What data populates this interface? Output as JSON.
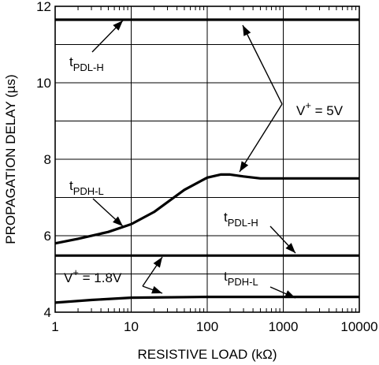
{
  "chart_data": {
    "type": "line",
    "xlabel": "RESISTIVE LOAD (kΩ)",
    "ylabel": "PROPAGATION DELAY (µs)",
    "x_scale": "log",
    "xlim": [
      1,
      10000
    ],
    "ylim": [
      4,
      12
    ],
    "x_ticks": [
      1,
      10,
      100,
      1000,
      10000
    ],
    "x_tick_labels": [
      "1",
      "10",
      "100",
      "1000",
      "10000"
    ],
    "y_ticks": [
      4,
      6,
      8,
      10,
      12
    ],
    "y_tick_labels": [
      "4",
      "6",
      "8",
      "10",
      "12"
    ],
    "grid": true,
    "series": [
      {
        "x": [
          1,
          10000
        ],
        "y": [
          11.65,
          11.65
        ]
      },
      {
        "x": [
          1,
          2,
          5,
          10,
          20,
          50,
          100,
          150,
          200,
          300,
          500,
          1000,
          10000
        ],
        "y": [
          5.8,
          5.92,
          6.1,
          6.3,
          6.62,
          7.2,
          7.52,
          7.6,
          7.6,
          7.55,
          7.5,
          7.5,
          7.5
        ]
      },
      {
        "x": [
          1,
          10000
        ],
        "y": [
          5.48,
          5.48
        ]
      },
      {
        "x": [
          1,
          3,
          10,
          100,
          10000
        ],
        "y": [
          4.25,
          4.32,
          4.38,
          4.4,
          4.4
        ]
      }
    ],
    "annotations": [
      {
        "main": "t",
        "sub": "PDL-H"
      },
      {
        "main": "t",
        "sub": "PDH-L"
      },
      {
        "main": "t",
        "sub": "PDL-H"
      },
      {
        "main": "t",
        "sub": "PDH-L"
      },
      {
        "main": "V",
        "sup": "+",
        "rest": " = 5V"
      },
      {
        "main": "V",
        "sup": "+",
        "rest": " = 1.8V"
      }
    ]
  }
}
